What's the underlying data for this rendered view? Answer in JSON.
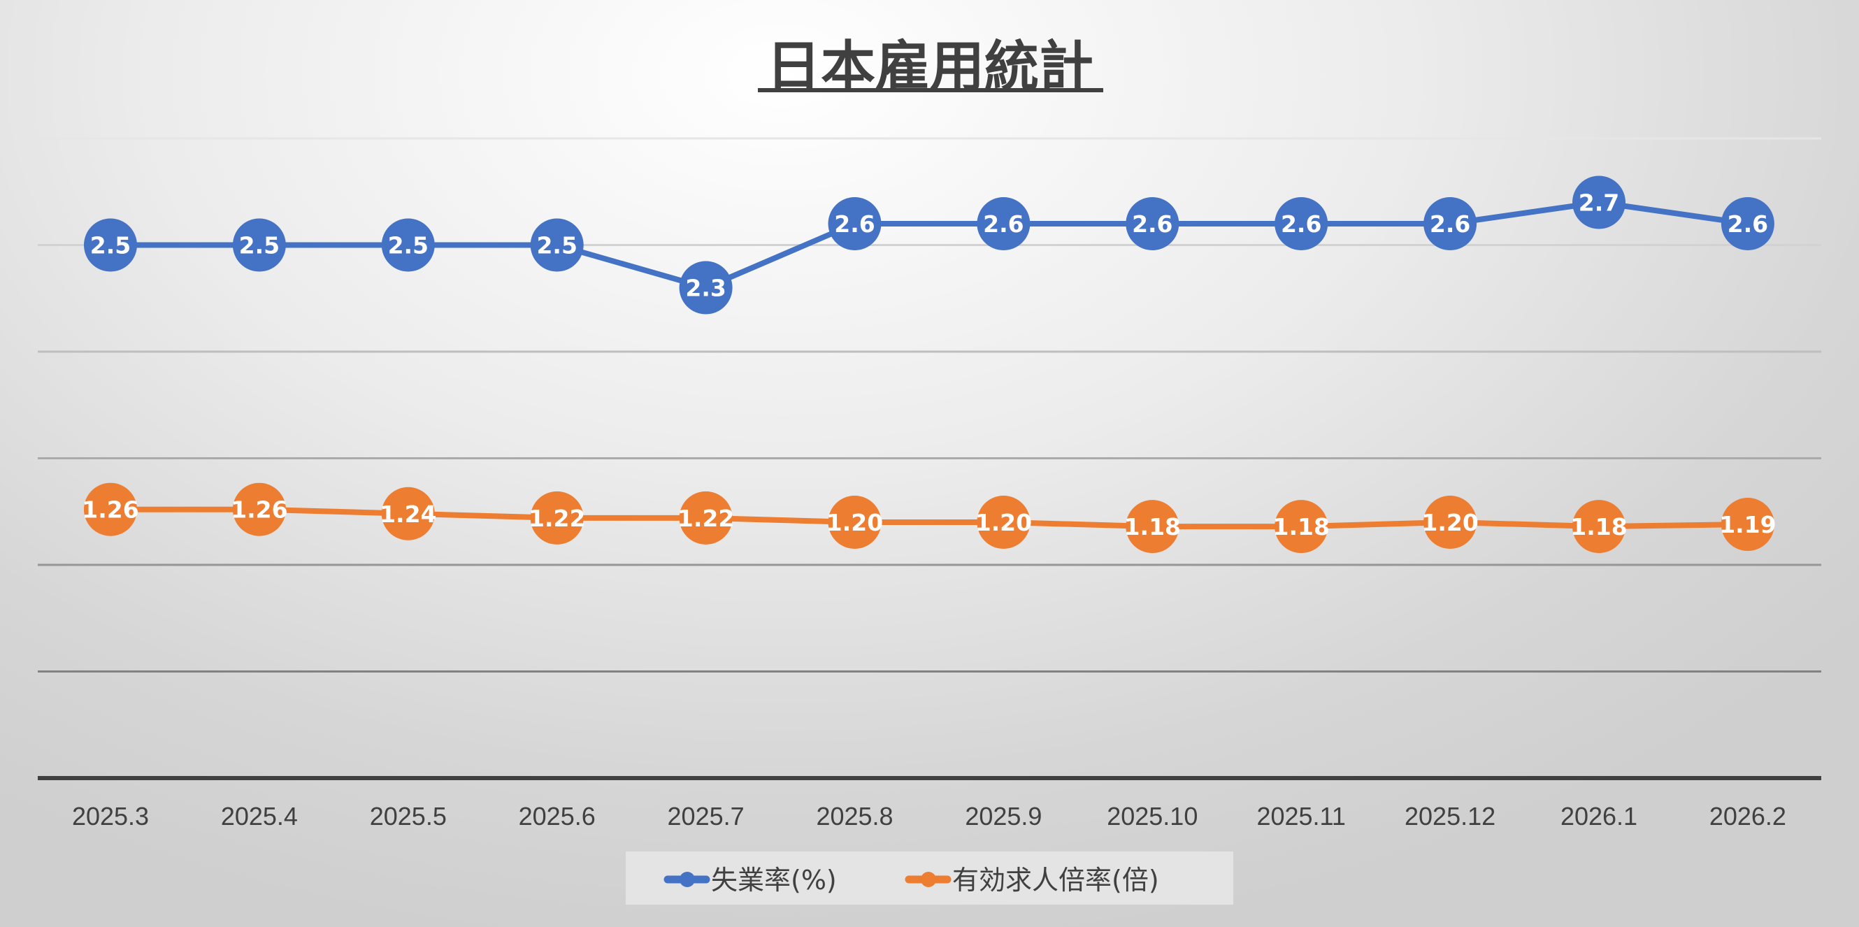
{
  "chart_data": {
    "type": "line",
    "title": "日本雇用統計",
    "xlabel": "",
    "ylabel": "",
    "ylim": [
      0,
      3
    ],
    "ytick_step": 0.5,
    "y_tick_labels_shown": false,
    "grid": true,
    "legend_position": "bottom",
    "categories": [
      "2025.3",
      "2025.4",
      "2025.5",
      "2025.6",
      "2025.7",
      "2025.8",
      "2025.9",
      "2025.10",
      "2025.11",
      "2025.12",
      "2026.1",
      "2026.2"
    ],
    "series": [
      {
        "name": "失業率(%)",
        "color": "#4472C4",
        "values": [
          2.5,
          2.5,
          2.5,
          2.5,
          2.3,
          2.6,
          2.6,
          2.6,
          2.6,
          2.6,
          2.7,
          2.6
        ],
        "labels": [
          "2.5",
          "2.5",
          "2.5",
          "2.5",
          "2.3",
          "2.6",
          "2.6",
          "2.6",
          "2.6",
          "2.6",
          "2.7",
          "2.6"
        ]
      },
      {
        "name": "有効求人倍率(倍)",
        "color": "#ED7D31",
        "values": [
          1.26,
          1.26,
          1.24,
          1.22,
          1.22,
          1.2,
          1.2,
          1.18,
          1.18,
          1.2,
          1.18,
          1.19
        ],
        "labels": [
          "1.26",
          "1.26",
          "1.24",
          "1.22",
          "1.22",
          "1.20",
          "1.20",
          "1.18",
          "1.18",
          "1.20",
          "1.18",
          "1.19"
        ]
      }
    ]
  }
}
